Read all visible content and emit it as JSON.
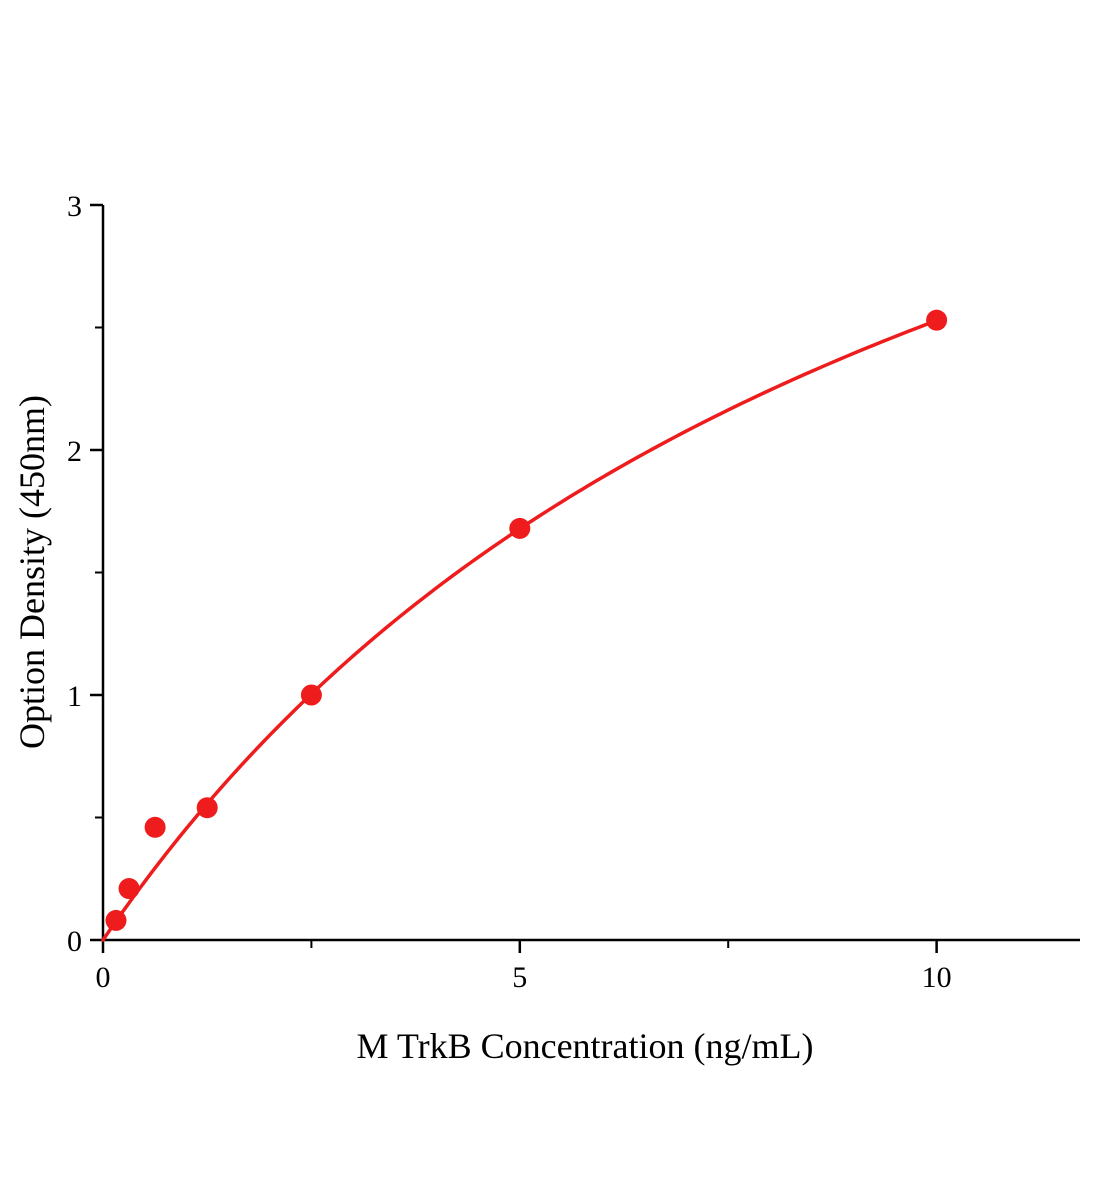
{
  "chart_data": {
    "type": "scatter",
    "title": "",
    "xlabel": "M TrkB Concentration (ng/mL)",
    "ylabel": "Option Density (450nm)",
    "x": [
      0.156,
      0.3125,
      0.625,
      1.25,
      2.5,
      5,
      10
    ],
    "y": [
      0.08,
      0.21,
      0.46,
      0.54,
      1.0,
      1.68,
      2.53
    ],
    "xlim": [
      0,
      11.72
    ],
    "ylim": [
      0,
      3
    ],
    "x_major_ticks": [
      0,
      5,
      10
    ],
    "x_minor_ticks": [
      2.5,
      7.5
    ],
    "y_major_ticks": [
      0,
      1,
      2,
      3
    ],
    "y_minor_ticks": [
      0.5,
      1.5,
      2.5
    ],
    "fit": {
      "type": "saturation",
      "vmax": 5.12,
      "k": 10.25,
      "x_range": [
        0,
        10
      ]
    },
    "point_color": "#ee1c1c",
    "line_color": "#ee1c1c",
    "axis_color": "#000000",
    "grid": false,
    "legend": null
  }
}
